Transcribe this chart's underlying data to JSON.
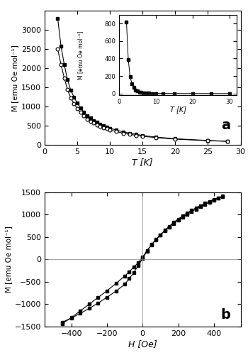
{
  "panel_a": {
    "label": "a",
    "xlabel": "T [K]",
    "ylabel": "M [emu Oe mol⁻¹]",
    "xlim": [
      0,
      30
    ],
    "ylim": [
      0,
      3500
    ],
    "yticks": [
      0,
      500,
      1000,
      1500,
      2000,
      2500,
      3000
    ],
    "xticks": [
      0,
      5,
      10,
      15,
      20,
      25,
      30
    ],
    "fcm_T": [
      2.0,
      2.5,
      3.0,
      3.5,
      4.0,
      4.5,
      5.0,
      5.5,
      6.0,
      6.5,
      7.0,
      7.5,
      8.0,
      8.5,
      9.0,
      9.5,
      10.0,
      11.0,
      12.0,
      13.0,
      14.0,
      15.0,
      17.0,
      20.0,
      25.0,
      28.0
    ],
    "fcm_M": [
      3300,
      2580,
      2100,
      1700,
      1430,
      1250,
      1090,
      970,
      860,
      770,
      700,
      640,
      590,
      545,
      505,
      470,
      440,
      390,
      345,
      310,
      280,
      250,
      210,
      165,
      120,
      100
    ],
    "zfcm_T": [
      2.0,
      2.5,
      3.0,
      3.5,
      4.0,
      4.5,
      5.0,
      5.5,
      6.0,
      6.5,
      7.0,
      7.5,
      8.0,
      8.5,
      9.0,
      9.5,
      10.0,
      11.0,
      12.0,
      13.0,
      14.0,
      15.0,
      17.0,
      20.0,
      25.0,
      28.0
    ],
    "zfcm_M": [
      2500,
      2100,
      1750,
      1440,
      1230,
      1080,
      950,
      850,
      760,
      680,
      625,
      575,
      530,
      490,
      455,
      425,
      395,
      350,
      310,
      280,
      255,
      230,
      195,
      155,
      115,
      98
    ],
    "inset": {
      "xlim": [
        0,
        32
      ],
      "ylim": [
        -20,
        900
      ],
      "xticks": [
        0,
        10,
        20,
        30
      ],
      "yticks": [
        0,
        200,
        400,
        600,
        800
      ],
      "xlabel": "T [K]",
      "ylabel": "M [emu Oe mol⁻¹]",
      "T": [
        2.0,
        2.5,
        3.0,
        3.5,
        4.0,
        4.5,
        5.0,
        5.5,
        6.0,
        6.5,
        7.0,
        7.5,
        8.0,
        9.0,
        10.0,
        12.0,
        15.0,
        20.0,
        25.0,
        30.0
      ],
      "M": [
        820,
        390,
        190,
        115,
        72,
        42,
        28,
        18,
        12,
        8,
        6,
        4,
        3,
        2,
        1.5,
        1,
        0.5,
        0.3,
        0.2,
        0.1
      ]
    }
  },
  "panel_b": {
    "label": "b",
    "xlabel": "H [Oe]",
    "ylabel": "M [emu Oe mol⁻¹]",
    "xlim": [
      -550,
      550
    ],
    "ylim": [
      -1500,
      1500
    ],
    "yticks": [
      -1500,
      -1000,
      -500,
      0,
      500,
      1000,
      1500
    ],
    "xticks": [
      -400,
      -200,
      0,
      200,
      400
    ],
    "H_upper": [
      -450,
      -400,
      -350,
      -300,
      -250,
      -200,
      -150,
      -100,
      -75,
      -50,
      -25,
      0,
      25,
      50,
      75,
      100,
      125,
      150,
      175,
      200,
      225,
      250,
      275,
      300,
      325,
      350,
      375,
      400,
      425,
      450
    ],
    "M_upper": [
      -1430,
      -1300,
      -1150,
      -1000,
      -850,
      -700,
      -540,
      -370,
      -280,
      -170,
      -80,
      50,
      200,
      330,
      440,
      545,
      640,
      725,
      800,
      875,
      940,
      1005,
      1065,
      1120,
      1175,
      1225,
      1275,
      1320,
      1360,
      1395
    ],
    "H_lower": [
      450,
      425,
      400,
      375,
      350,
      325,
      300,
      275,
      250,
      225,
      200,
      175,
      150,
      125,
      100,
      75,
      50,
      25,
      0,
      -25,
      -50,
      -75,
      -100,
      -150,
      -200,
      -250,
      -300,
      -350,
      -400,
      -450
    ],
    "M_lower": [
      1410,
      1375,
      1340,
      1295,
      1250,
      1200,
      1150,
      1095,
      1035,
      970,
      900,
      825,
      740,
      650,
      550,
      445,
      325,
      185,
      20,
      -140,
      -300,
      -430,
      -555,
      -710,
      -845,
      -975,
      -1095,
      -1205,
      -1310,
      -1400
    ]
  }
}
